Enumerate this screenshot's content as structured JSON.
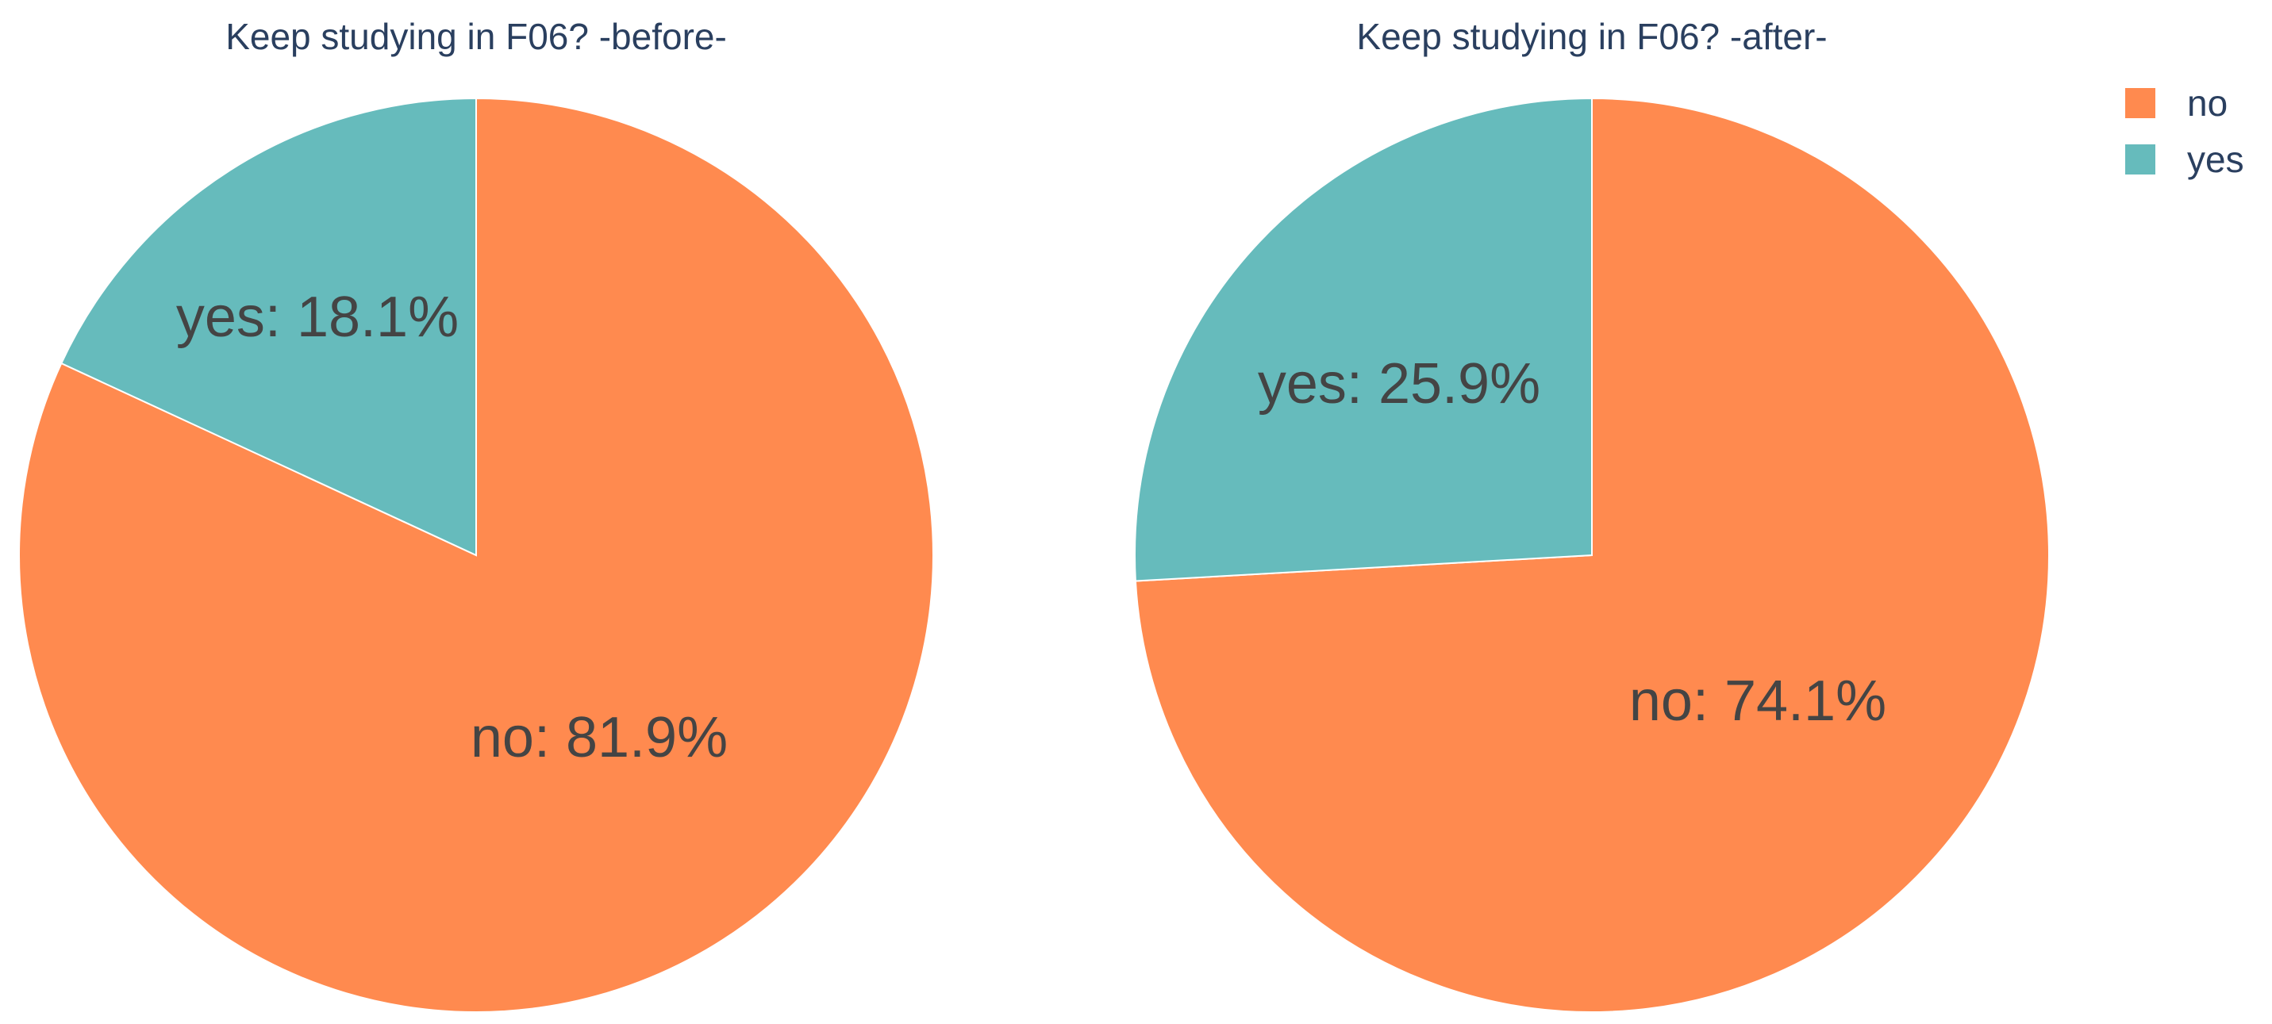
{
  "colors": {
    "no": "#ff8a4f",
    "yes": "#66bbbc"
  },
  "legend": {
    "items": [
      {
        "label": "no",
        "color": "#ff8a4f"
      },
      {
        "label": "yes",
        "color": "#66bbbc"
      }
    ]
  },
  "chart_data": [
    {
      "type": "pie",
      "title": "Keep studying in F06? -before-",
      "categories": [
        "no",
        "yes"
      ],
      "values": [
        81.9,
        18.1
      ],
      "labels": [
        "no: 81.9%",
        "yes: 18.1%"
      ],
      "colors": [
        "#ff8a4f",
        "#66bbbc"
      ],
      "start_angle": "12 o'clock",
      "direction": "clockwise"
    },
    {
      "type": "pie",
      "title": "Keep studying in F06? -after-",
      "categories": [
        "no",
        "yes"
      ],
      "values": [
        74.1,
        25.9
      ],
      "labels": [
        "no: 74.1%",
        "yes: 25.9%"
      ],
      "colors": [
        "#ff8a4f",
        "#66bbbc"
      ],
      "start_angle": "12 o'clock",
      "direction": "clockwise"
    }
  ]
}
